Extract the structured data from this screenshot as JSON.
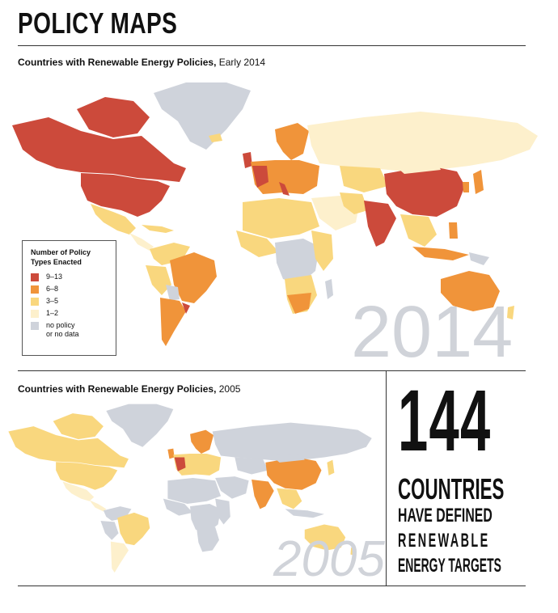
{
  "page": {
    "title": "POLICY MAPS"
  },
  "map_2014": {
    "title_bold": "Countries with Renewable Energy Policies,",
    "title_rest": " Early 2014",
    "year": "2014"
  },
  "map_2005": {
    "title_bold": "Countries with Renewable Energy Policies,",
    "title_rest": " 2005",
    "year": "2005"
  },
  "legend": {
    "title_line1": "Number of Policy",
    "title_line2": "Types Enacted",
    "items": [
      {
        "label": "9–13",
        "color": "#cc4a3b"
      },
      {
        "label": "6–8",
        "color": "#f0943a"
      },
      {
        "label": "3–5",
        "color": "#f9d77e"
      },
      {
        "label": "1–2",
        "color": "#fdf0cc"
      },
      {
        "label": "no policy",
        "label2": "or no data",
        "color": "#cfd3db"
      }
    ]
  },
  "stat": {
    "number": "144",
    "line1": "COUNTRIES",
    "line2": "HAVE DEFINED",
    "line3": "RENEWABLE",
    "line4": "ENERGY TARGETS"
  }
}
